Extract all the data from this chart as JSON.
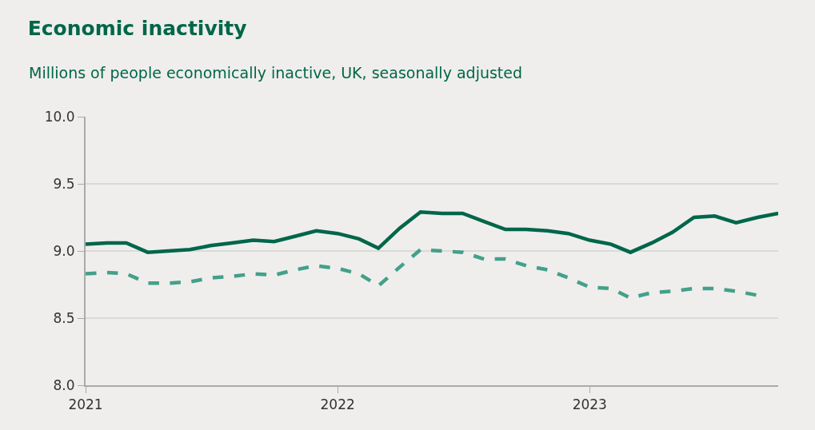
{
  "chart_data": {
    "type": "line",
    "title": "Economic inactivity",
    "subtitle": "Millions of people economically inactive, UK, seasonally adjusted",
    "x": [
      "2021-01",
      "2021-02",
      "2021-03",
      "2021-04",
      "2021-05",
      "2021-06",
      "2021-07",
      "2021-08",
      "2021-09",
      "2021-10",
      "2021-11",
      "2021-12",
      "2022-01",
      "2022-02",
      "2022-03",
      "2022-04",
      "2022-05",
      "2022-06",
      "2022-07",
      "2022-08",
      "2022-09",
      "2022-10",
      "2022-11",
      "2022-12",
      "2023-01",
      "2023-02",
      "2023-03",
      "2023-04",
      "2023-05",
      "2023-06",
      "2023-07",
      "2023-08",
      "2023-09",
      "2023-10"
    ],
    "series": [
      {
        "color": "#00664a",
        "line_style": "solid",
        "values": [
          9.05,
          9.06,
          9.06,
          8.99,
          9.0,
          9.01,
          9.04,
          9.06,
          9.08,
          9.07,
          9.11,
          9.15,
          9.13,
          9.09,
          9.02,
          9.17,
          9.29,
          9.28,
          9.28,
          9.22,
          9.16,
          9.16,
          9.15,
          9.13,
          9.08,
          9.05,
          8.99,
          9.06,
          9.14,
          9.25,
          9.26,
          9.21,
          9.25,
          9.28
        ]
      },
      {
        "color": "#43a08a",
        "line_style": "dashed",
        "values": [
          8.83,
          8.84,
          8.83,
          8.76,
          8.76,
          8.77,
          8.8,
          8.81,
          8.83,
          8.82,
          8.86,
          8.89,
          8.87,
          8.83,
          8.74,
          8.88,
          9.01,
          9.0,
          8.99,
          8.94,
          8.94,
          8.89,
          8.86,
          8.8,
          8.73,
          8.72,
          8.65,
          8.69,
          8.7,
          8.72,
          8.72,
          8.7,
          8.67,
          null
        ]
      }
    ],
    "xlim": [
      "2021-01",
      "2023-10"
    ],
    "xticks": [
      {
        "value": "2021-01",
        "label": "2021"
      },
      {
        "value": "2022-01",
        "label": "2022"
      },
      {
        "value": "2023-01",
        "label": "2023"
      }
    ],
    "ylim": [
      8.0,
      10.0
    ],
    "yticks": [
      {
        "value": 8.0,
        "label": "8.0"
      },
      {
        "value": 8.5,
        "label": "8.5"
      },
      {
        "value": 9.0,
        "label": "9.0"
      },
      {
        "value": 9.5,
        "label": "9.5"
      },
      {
        "value": 10.0,
        "label": "10.0"
      }
    ],
    "grid": "y",
    "marker": "none"
  }
}
